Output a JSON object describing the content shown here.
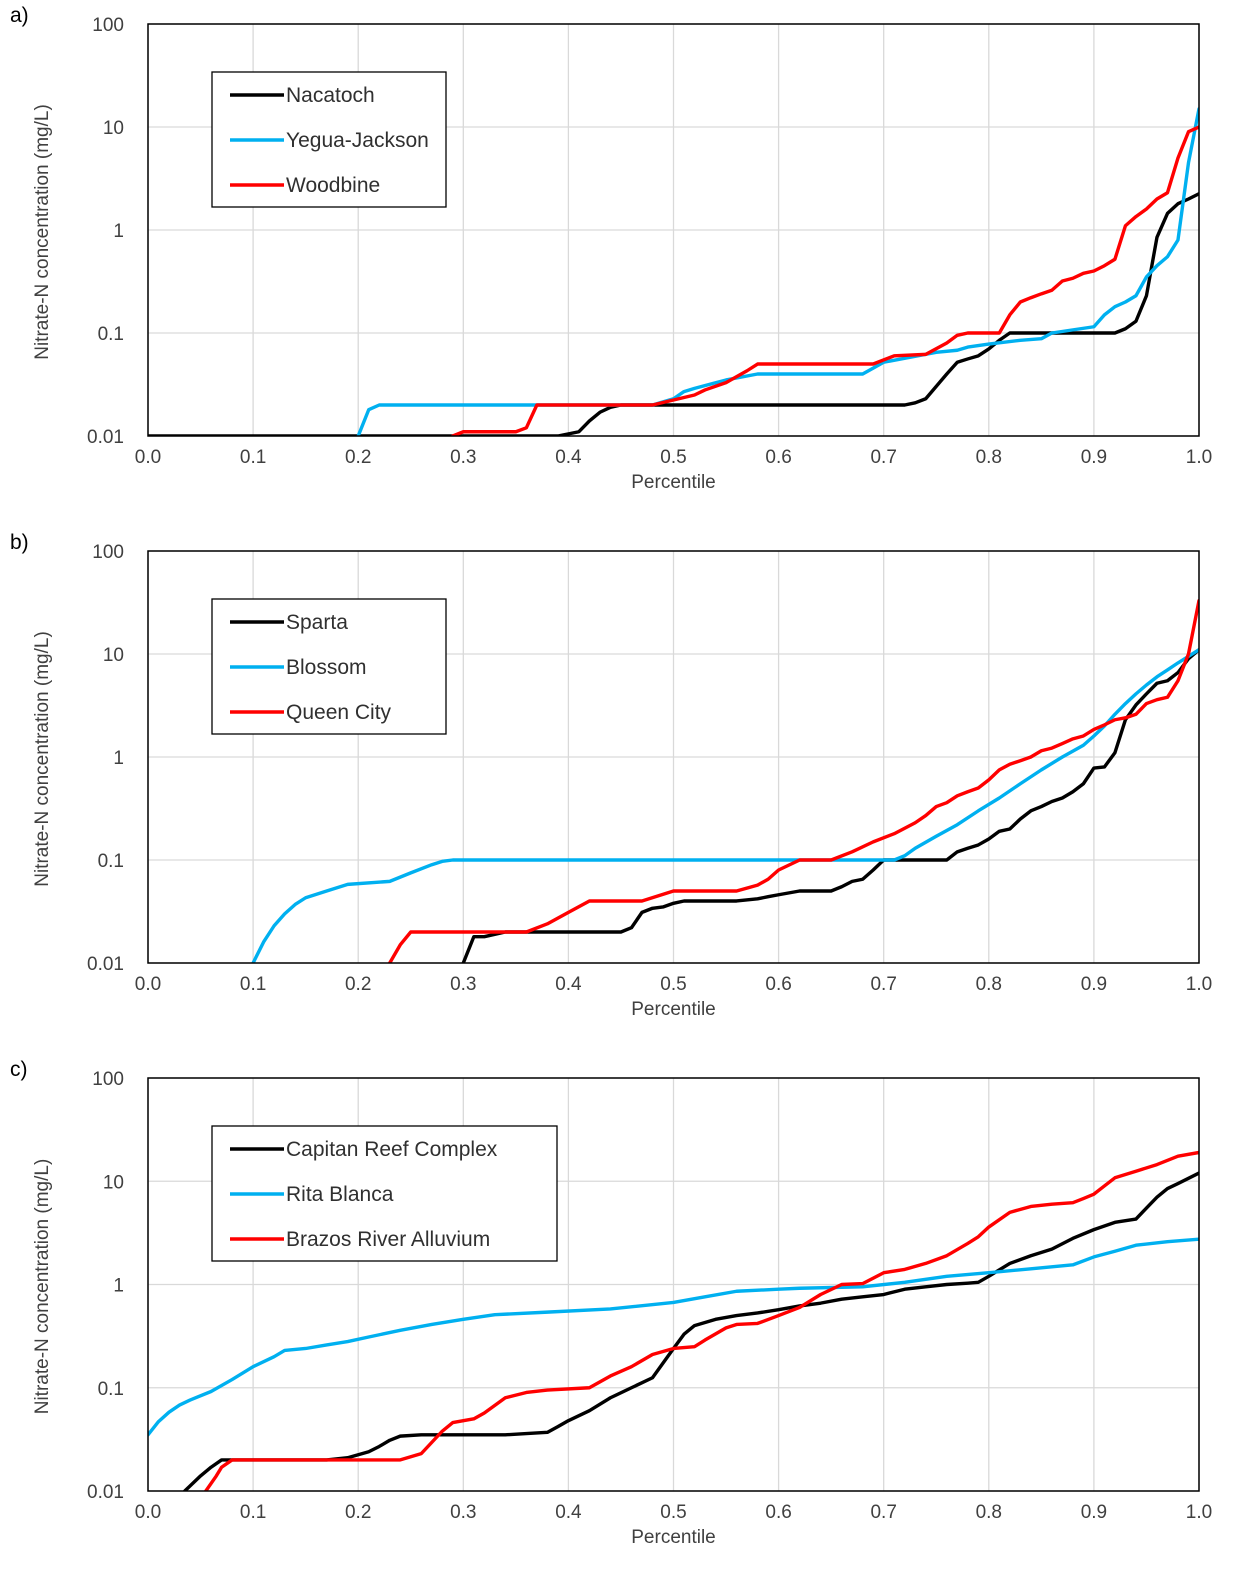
{
  "colors": {
    "black": "#000000",
    "blue": "#00b0f0",
    "red": "#ff0000"
  },
  "chart_data": [
    {
      "panel_label": "a)",
      "type": "line",
      "xlabel": "Percentile",
      "ylabel": "Nitrate-N concentration (mg/L)",
      "xlim": [
        0,
        1
      ],
      "ylim": [
        0.01,
        100
      ],
      "yscale": "log",
      "xticks": [
        "0.0",
        "0.1",
        "0.2",
        "0.3",
        "0.4",
        "0.5",
        "0.6",
        "0.7",
        "0.8",
        "0.9",
        "1.0"
      ],
      "yticks": [
        "0.01",
        "0.1",
        "1",
        "10",
        "100"
      ],
      "grid": "vertical",
      "legend_position": "top-left",
      "series": [
        {
          "name": "Nacatoch",
          "color": "#000000",
          "x": [
            0,
            0.38,
            0.39,
            0.41,
            0.42,
            0.43,
            0.44,
            0.45,
            0.72,
            0.73,
            0.74,
            0.76,
            0.77,
            0.78,
            0.79,
            0.8,
            0.81,
            0.82,
            0.83,
            0.92,
            0.93,
            0.94,
            0.95,
            0.96,
            0.97,
            0.98,
            0.99,
            1.0
          ],
          "y": [
            0.01,
            0.01,
            0.01,
            0.011,
            0.014,
            0.017,
            0.019,
            0.02,
            0.02,
            0.021,
            0.023,
            0.04,
            0.052,
            0.056,
            0.06,
            0.07,
            0.085,
            0.1,
            0.1,
            0.1,
            0.11,
            0.13,
            0.23,
            0.85,
            1.45,
            1.8,
            2.0,
            2.25
          ]
        },
        {
          "name": "Yegua-Jackson",
          "color": "#00b0f0",
          "x": [
            0.2,
            0.21,
            0.22,
            0.48,
            0.5,
            0.51,
            0.52,
            0.55,
            0.58,
            0.68,
            0.7,
            0.75,
            0.77,
            0.78,
            0.8,
            0.83,
            0.85,
            0.86,
            0.9,
            0.91,
            0.92,
            0.93,
            0.94,
            0.95,
            0.96,
            0.97,
            0.98,
            0.99,
            1.0
          ],
          "y": [
            0.01,
            0.018,
            0.02,
            0.02,
            0.023,
            0.027,
            0.029,
            0.035,
            0.04,
            0.04,
            0.052,
            0.065,
            0.068,
            0.073,
            0.078,
            0.085,
            0.088,
            0.1,
            0.115,
            0.15,
            0.18,
            0.2,
            0.23,
            0.35,
            0.45,
            0.55,
            0.8,
            4.5,
            15
          ]
        },
        {
          "name": "Woodbine",
          "color": "#ff0000",
          "x": [
            0.29,
            0.3,
            0.35,
            0.36,
            0.37,
            0.48,
            0.52,
            0.53,
            0.55,
            0.57,
            0.58,
            0.69,
            0.71,
            0.74,
            0.76,
            0.77,
            0.78,
            0.81,
            0.82,
            0.83,
            0.84,
            0.85,
            0.86,
            0.87,
            0.88,
            0.89,
            0.9,
            0.91,
            0.92,
            0.93,
            0.94,
            0.95,
            0.96,
            0.97,
            0.98,
            0.99,
            1.0
          ],
          "y": [
            0.01,
            0.011,
            0.011,
            0.012,
            0.02,
            0.02,
            0.025,
            0.028,
            0.033,
            0.043,
            0.05,
            0.05,
            0.06,
            0.062,
            0.08,
            0.095,
            0.1,
            0.1,
            0.15,
            0.2,
            0.22,
            0.24,
            0.26,
            0.32,
            0.34,
            0.38,
            0.4,
            0.45,
            0.52,
            1.1,
            1.35,
            1.6,
            2.0,
            2.3,
            5.0,
            9.0,
            10.0
          ]
        }
      ]
    },
    {
      "panel_label": "b)",
      "type": "line",
      "xlabel": "Percentile",
      "ylabel": "Nitrate-N concentration (mg/L)",
      "xlim": [
        0,
        1
      ],
      "ylim": [
        0.01,
        100
      ],
      "yscale": "log",
      "xticks": [
        "0.0",
        "0.1",
        "0.2",
        "0.3",
        "0.4",
        "0.5",
        "0.6",
        "0.7",
        "0.8",
        "0.9",
        "1.0"
      ],
      "yticks": [
        "0.01",
        "0.1",
        "1",
        "10",
        "100"
      ],
      "grid": "vertical",
      "legend_position": "top-left",
      "series": [
        {
          "name": "Sparta",
          "color": "#000000",
          "x": [
            0.3,
            0.31,
            0.32,
            0.33,
            0.34,
            0.35,
            0.36,
            0.45,
            0.46,
            0.47,
            0.48,
            0.49,
            0.5,
            0.51,
            0.52,
            0.56,
            0.58,
            0.59,
            0.6,
            0.62,
            0.65,
            0.66,
            0.67,
            0.68,
            0.69,
            0.7,
            0.76,
            0.77,
            0.78,
            0.79,
            0.8,
            0.81,
            0.82,
            0.83,
            0.84,
            0.85,
            0.86,
            0.87,
            0.88,
            0.89,
            0.9,
            0.91,
            0.92,
            0.93,
            0.94,
            0.95,
            0.96,
            0.97,
            0.98,
            0.99,
            1.0
          ],
          "y": [
            0.01,
            0.018,
            0.018,
            0.019,
            0.02,
            0.02,
            0.02,
            0.02,
            0.022,
            0.031,
            0.034,
            0.035,
            0.038,
            0.04,
            0.04,
            0.04,
            0.042,
            0.044,
            0.046,
            0.05,
            0.05,
            0.055,
            0.062,
            0.065,
            0.08,
            0.1,
            0.1,
            0.12,
            0.13,
            0.14,
            0.16,
            0.19,
            0.2,
            0.25,
            0.3,
            0.33,
            0.37,
            0.4,
            0.46,
            0.55,
            0.78,
            0.8,
            1.1,
            2.3,
            3.2,
            4.1,
            5.2,
            5.5,
            6.6,
            9.0,
            11.0
          ]
        },
        {
          "name": "Blossom",
          "color": "#00b0f0",
          "x": [
            0.1,
            0.11,
            0.12,
            0.13,
            0.14,
            0.15,
            0.17,
            0.19,
            0.23,
            0.25,
            0.27,
            0.28,
            0.29,
            0.71,
            0.72,
            0.73,
            0.75,
            0.77,
            0.79,
            0.81,
            0.83,
            0.85,
            0.87,
            0.89,
            0.9,
            0.91,
            0.92,
            0.93,
            0.94,
            0.95,
            0.96,
            0.97,
            0.98,
            0.99,
            1.0
          ],
          "y": [
            0.01,
            0.016,
            0.023,
            0.03,
            0.037,
            0.043,
            0.05,
            0.058,
            0.062,
            0.075,
            0.09,
            0.097,
            0.1,
            0.1,
            0.11,
            0.13,
            0.17,
            0.22,
            0.3,
            0.4,
            0.55,
            0.75,
            1.0,
            1.3,
            1.6,
            2.0,
            2.6,
            3.3,
            4.1,
            5.0,
            6.0,
            7.0,
            8.2,
            9.5,
            11.0
          ]
        },
        {
          "name": "Queen City",
          "color": "#ff0000",
          "x": [
            0.23,
            0.24,
            0.25,
            0.36,
            0.38,
            0.4,
            0.42,
            0.47,
            0.5,
            0.56,
            0.58,
            0.59,
            0.6,
            0.62,
            0.65,
            0.67,
            0.69,
            0.71,
            0.73,
            0.74,
            0.75,
            0.76,
            0.77,
            0.78,
            0.79,
            0.8,
            0.81,
            0.82,
            0.83,
            0.84,
            0.85,
            0.86,
            0.87,
            0.88,
            0.89,
            0.9,
            0.91,
            0.92,
            0.93,
            0.94,
            0.95,
            0.96,
            0.97,
            0.98,
            0.99,
            1.0
          ],
          "y": [
            0.01,
            0.015,
            0.02,
            0.02,
            0.024,
            0.031,
            0.04,
            0.04,
            0.05,
            0.05,
            0.057,
            0.065,
            0.08,
            0.1,
            0.1,
            0.12,
            0.15,
            0.18,
            0.23,
            0.27,
            0.33,
            0.36,
            0.42,
            0.46,
            0.5,
            0.6,
            0.75,
            0.85,
            0.92,
            1.0,
            1.15,
            1.22,
            1.35,
            1.5,
            1.6,
            1.85,
            2.05,
            2.3,
            2.4,
            2.6,
            3.3,
            3.6,
            3.8,
            5.5,
            10.0,
            33.0
          ]
        }
      ]
    },
    {
      "panel_label": "c)",
      "type": "line",
      "xlabel": "Percentile",
      "ylabel": "Nitrate-N concentration (mg/L)",
      "xlim": [
        0,
        1
      ],
      "ylim": [
        0.01,
        100
      ],
      "yscale": "log",
      "xticks": [
        "0.0",
        "0.1",
        "0.2",
        "0.3",
        "0.4",
        "0.5",
        "0.6",
        "0.7",
        "0.8",
        "0.9",
        "1.0"
      ],
      "yticks": [
        "0.01",
        "0.1",
        "1",
        "10",
        "100"
      ],
      "grid": "vertical",
      "legend_position": "top-left",
      "series": [
        {
          "name": "Capitan Reef Complex",
          "color": "#000000",
          "x": [
            0.035,
            0.05,
            0.06,
            0.07,
            0.08,
            0.17,
            0.19,
            0.21,
            0.22,
            0.23,
            0.24,
            0.26,
            0.34,
            0.36,
            0.38,
            0.39,
            0.4,
            0.42,
            0.44,
            0.46,
            0.48,
            0.5,
            0.51,
            0.52,
            0.54,
            0.56,
            0.58,
            0.6,
            0.62,
            0.64,
            0.66,
            0.68,
            0.7,
            0.72,
            0.74,
            0.76,
            0.78,
            0.79,
            0.8,
            0.82,
            0.84,
            0.86,
            0.88,
            0.9,
            0.92,
            0.94,
            0.95,
            0.96,
            0.97,
            0.98,
            1.0
          ],
          "y": [
            0.01,
            0.014,
            0.017,
            0.02,
            0.02,
            0.02,
            0.021,
            0.024,
            0.027,
            0.031,
            0.034,
            0.035,
            0.035,
            0.036,
            0.037,
            0.042,
            0.048,
            0.06,
            0.08,
            0.1,
            0.125,
            0.24,
            0.33,
            0.4,
            0.46,
            0.5,
            0.53,
            0.57,
            0.62,
            0.66,
            0.72,
            0.76,
            0.8,
            0.9,
            0.95,
            1.0,
            1.03,
            1.05,
            1.2,
            1.6,
            1.9,
            2.2,
            2.8,
            3.4,
            4.0,
            4.3,
            5.5,
            7.0,
            8.5,
            9.5,
            12.0
          ]
        },
        {
          "name": "Rita Blanca",
          "color": "#00b0f0",
          "x": [
            0,
            0.01,
            0.02,
            0.03,
            0.04,
            0.06,
            0.08,
            0.1,
            0.12,
            0.13,
            0.15,
            0.17,
            0.19,
            0.21,
            0.24,
            0.27,
            0.3,
            0.33,
            0.38,
            0.44,
            0.5,
            0.53,
            0.56,
            0.6,
            0.62,
            0.68,
            0.72,
            0.76,
            0.8,
            0.84,
            0.88,
            0.9,
            0.92,
            0.94,
            0.97,
            1.0
          ],
          "y": [
            0.035,
            0.047,
            0.058,
            0.068,
            0.076,
            0.092,
            0.12,
            0.16,
            0.2,
            0.23,
            0.24,
            0.26,
            0.28,
            0.31,
            0.36,
            0.41,
            0.46,
            0.51,
            0.54,
            0.58,
            0.67,
            0.76,
            0.86,
            0.9,
            0.92,
            0.95,
            1.05,
            1.2,
            1.3,
            1.42,
            1.55,
            1.85,
            2.1,
            2.4,
            2.6,
            2.75
          ]
        },
        {
          "name": "Brazos River Alluvium",
          "color": "#ff0000",
          "x": [
            0.055,
            0.065,
            0.07,
            0.08,
            0.24,
            0.26,
            0.28,
            0.29,
            0.31,
            0.32,
            0.34,
            0.36,
            0.38,
            0.42,
            0.44,
            0.46,
            0.48,
            0.5,
            0.52,
            0.53,
            0.55,
            0.56,
            0.58,
            0.6,
            0.62,
            0.64,
            0.66,
            0.68,
            0.7,
            0.72,
            0.74,
            0.76,
            0.78,
            0.79,
            0.8,
            0.82,
            0.84,
            0.86,
            0.88,
            0.89,
            0.9,
            0.91,
            0.92,
            0.94,
            0.96,
            0.98,
            1.0
          ],
          "y": [
            0.01,
            0.014,
            0.017,
            0.02,
            0.02,
            0.023,
            0.038,
            0.046,
            0.05,
            0.057,
            0.08,
            0.09,
            0.095,
            0.1,
            0.13,
            0.16,
            0.21,
            0.24,
            0.25,
            0.29,
            0.38,
            0.41,
            0.42,
            0.5,
            0.6,
            0.8,
            1.0,
            1.02,
            1.3,
            1.4,
            1.6,
            1.9,
            2.5,
            2.9,
            3.6,
            5.0,
            5.7,
            6.0,
            6.2,
            6.8,
            7.5,
            9.0,
            10.8,
            12.5,
            14.5,
            17.5,
            19.0
          ]
        }
      ]
    }
  ]
}
